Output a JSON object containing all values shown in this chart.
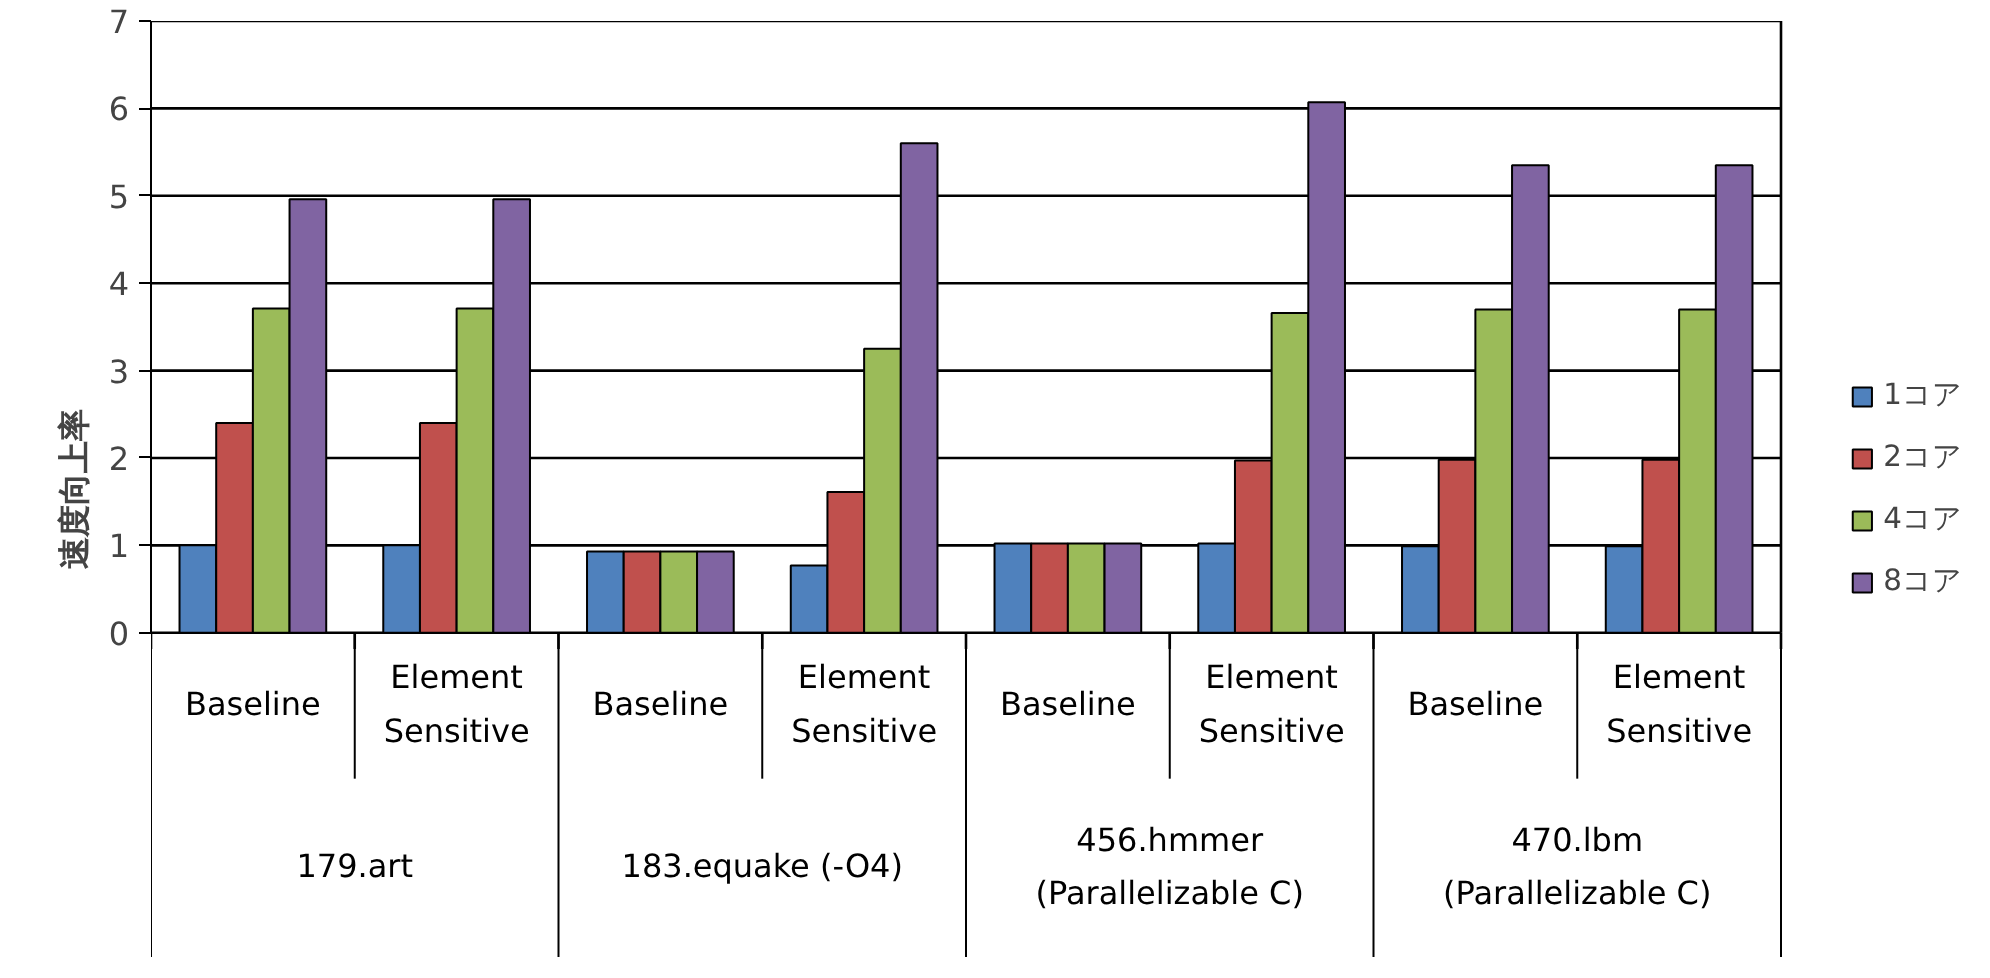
{
  "chart_data": {
    "type": "bar",
    "ylabel": "速度向上率",
    "categories": [
      "Baseline",
      "Element\nSensitive",
      "Baseline",
      "Element\nSensitive",
      "Baseline",
      "Element\nSensitive",
      "Baseline",
      "Element\nSensitive"
    ],
    "annotations": [
      "179.art",
      "183.equake (-O4)",
      "456.hmmer\n(Parallelizable C)",
      "470.lbm\n(Parallelizable C)"
    ],
    "series": [
      {
        "name": "1コア",
        "color": "#4f81bd",
        "values": [
          1.0,
          1.0,
          0.93,
          0.77,
          1.02,
          1.02,
          0.99,
          0.99
        ]
      },
      {
        "name": "2コア",
        "color": "#c0504d",
        "values": [
          2.4,
          2.4,
          0.93,
          1.61,
          1.02,
          1.97,
          1.98,
          1.98
        ]
      },
      {
        "name": "4コア",
        "color": "#9bbb59",
        "values": [
          3.71,
          3.71,
          0.93,
          3.25,
          1.02,
          3.66,
          3.7,
          3.7
        ]
      },
      {
        "name": "8コア",
        "color": "#8064a2",
        "values": [
          4.96,
          4.96,
          0.93,
          5.6,
          1.02,
          6.07,
          5.35,
          5.35
        ]
      }
    ],
    "ylim": [
      0,
      7
    ],
    "yticks": [
      0,
      1,
      2,
      3,
      4,
      5,
      6,
      7
    ],
    "grid": "y",
    "legend": "right"
  }
}
